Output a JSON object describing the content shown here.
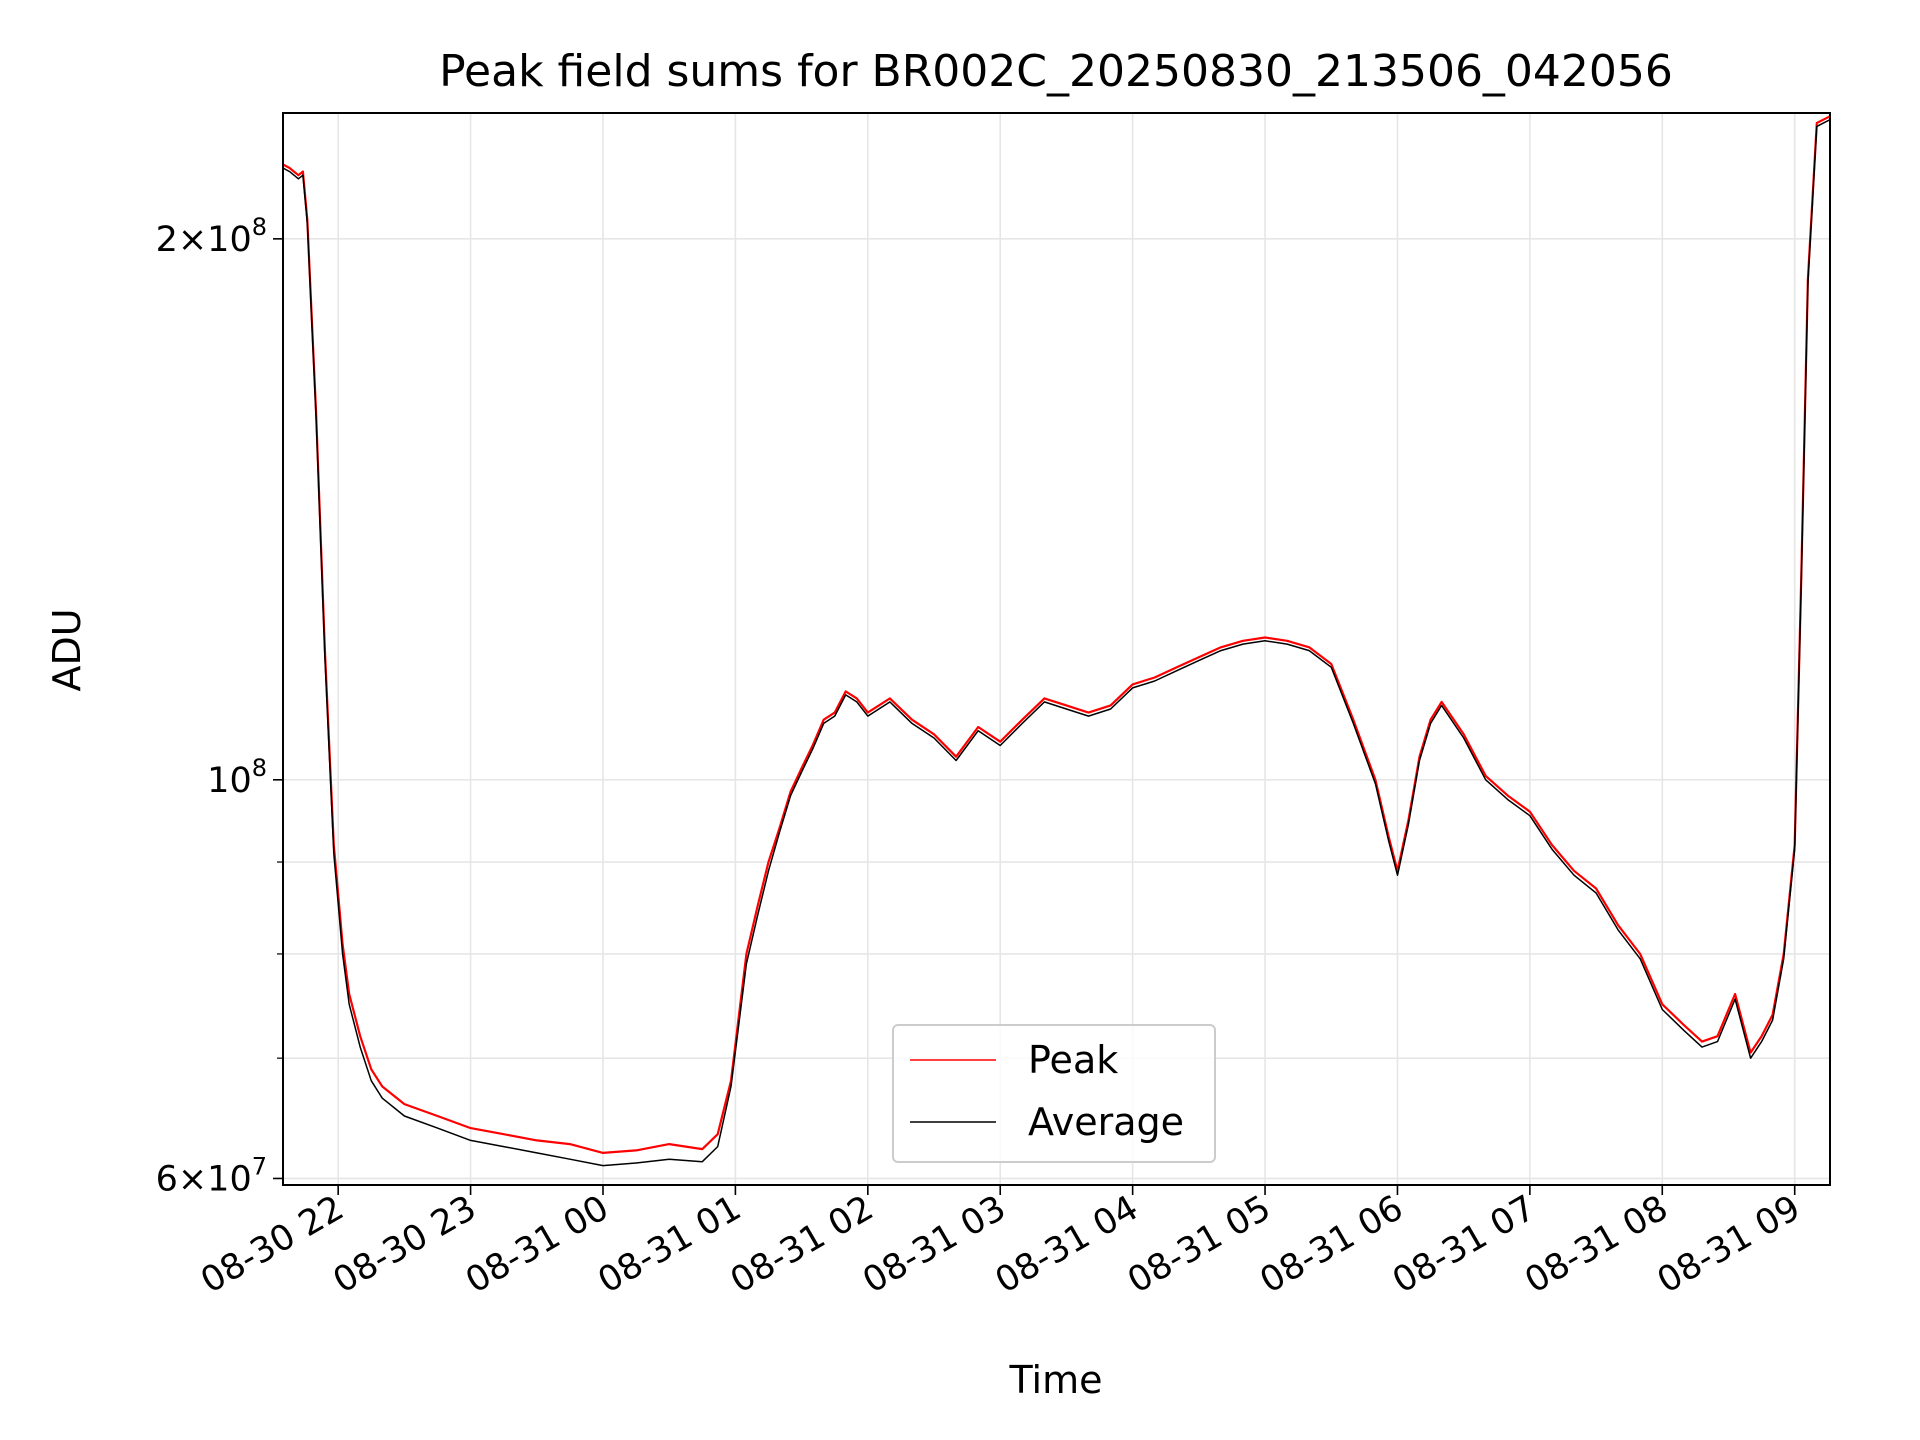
{
  "chart_data": {
    "type": "line",
    "title": "Peak field sums for BR002C_20250830_213506_042056",
    "xlabel": "Time",
    "ylabel": "ADU",
    "y_scale": "log",
    "xlim": [
      "2025-08-30 21:35",
      "2025-08-31 09:16"
    ],
    "ylim": [
      59500000,
      235000000
    ],
    "x_ticks": [
      "08-30 22",
      "08-30 23",
      "08-31 00",
      "08-31 01",
      "08-31 02",
      "08-31 03",
      "08-31 04",
      "08-31 05",
      "08-31 06",
      "08-31 07",
      "08-31 08",
      "08-31 09"
    ],
    "y_major_ticks": [
      {
        "value": 60000000,
        "base": "6",
        "exp": "7"
      },
      {
        "value": 100000000,
        "base": "",
        "exp": "8"
      },
      {
        "value": 200000000,
        "base": "2",
        "exp": "8"
      }
    ],
    "y_minor_ticks": [
      70000000,
      80000000,
      90000000
    ],
    "grid": true,
    "legend_position": "lower-center",
    "series": [
      {
        "name": "Peak",
        "color": "#ff0000",
        "x": [
          "2025-08-30 21:35",
          "2025-08-30 21:38",
          "2025-08-30 21:42",
          "2025-08-30 21:44",
          "2025-08-30 21:46",
          "2025-08-30 21:50",
          "2025-08-30 21:54",
          "2025-08-30 21:58",
          "2025-08-30 22:02",
          "2025-08-30 22:05",
          "2025-08-30 22:10",
          "2025-08-30 22:15",
          "2025-08-30 22:20",
          "2025-08-30 22:30",
          "2025-08-30 22:45",
          "2025-08-30 23:00",
          "2025-08-30 23:15",
          "2025-08-30 23:30",
          "2025-08-30 23:45",
          "2025-08-31 00:00",
          "2025-08-31 00:15",
          "2025-08-31 00:30",
          "2025-08-31 00:45",
          "2025-08-31 00:52",
          "2025-08-31 00:58",
          "2025-08-31 01:05",
          "2025-08-31 01:10",
          "2025-08-31 01:15",
          "2025-08-31 01:20",
          "2025-08-31 01:25",
          "2025-08-31 01:30",
          "2025-08-31 01:35",
          "2025-08-31 01:40",
          "2025-08-31 01:45",
          "2025-08-31 01:50",
          "2025-08-31 01:55",
          "2025-08-31 02:00",
          "2025-08-31 02:10",
          "2025-08-31 02:20",
          "2025-08-31 02:30",
          "2025-08-31 02:40",
          "2025-08-31 02:50",
          "2025-08-31 03:00",
          "2025-08-31 03:10",
          "2025-08-31 03:20",
          "2025-08-31 03:30",
          "2025-08-31 03:40",
          "2025-08-31 03:50",
          "2025-08-31 04:00",
          "2025-08-31 04:10",
          "2025-08-31 04:20",
          "2025-08-31 04:30",
          "2025-08-31 04:40",
          "2025-08-31 04:50",
          "2025-08-31 05:00",
          "2025-08-31 05:10",
          "2025-08-31 05:20",
          "2025-08-31 05:30",
          "2025-08-31 05:40",
          "2025-08-31 05:50",
          "2025-08-31 05:56",
          "2025-08-31 06:00",
          "2025-08-31 06:05",
          "2025-08-31 06:10",
          "2025-08-31 06:15",
          "2025-08-31 06:20",
          "2025-08-31 06:30",
          "2025-08-31 06:40",
          "2025-08-31 06:50",
          "2025-08-31 07:00",
          "2025-08-31 07:10",
          "2025-08-31 07:20",
          "2025-08-31 07:30",
          "2025-08-31 07:40",
          "2025-08-31 07:50",
          "2025-08-31 08:00",
          "2025-08-31 08:10",
          "2025-08-31 08:18",
          "2025-08-31 08:25",
          "2025-08-31 08:33",
          "2025-08-31 08:40",
          "2025-08-31 08:45",
          "2025-08-31 08:50",
          "2025-08-31 08:55",
          "2025-08-31 09:00",
          "2025-08-31 09:03",
          "2025-08-31 09:06",
          "2025-08-31 09:10",
          "2025-08-31 09:16"
        ],
        "y": [
          220000000,
          219000000,
          217000000,
          218000000,
          205000000,
          160000000,
          118000000,
          92000000,
          81000000,
          76000000,
          72000000,
          69000000,
          67500000,
          66000000,
          65000000,
          64000000,
          63500000,
          63000000,
          62700000,
          62000000,
          62200000,
          62700000,
          62300000,
          63500000,
          68000000,
          80000000,
          85000000,
          90000000,
          94000000,
          98500000,
          101500000,
          104500000,
          108000000,
          109000000,
          112000000,
          111000000,
          109000000,
          111000000,
          108000000,
          106000000,
          103000000,
          107000000,
          105000000,
          108000000,
          111000000,
          110000000,
          109000000,
          110000000,
          113000000,
          114000000,
          115500000,
          117000000,
          118500000,
          119500000,
          120000000,
          119500000,
          118500000,
          116000000,
          108000000,
          100000000,
          93000000,
          89000000,
          95000000,
          103000000,
          108000000,
          110500000,
          106000000,
          100500000,
          98000000,
          96000000,
          92000000,
          89000000,
          87000000,
          83000000,
          80000000,
          75000000,
          73000000,
          71500000,
          72000000,
          76000000,
          70500000,
          72000000,
          74000000,
          80000000,
          92000000,
          130000000,
          190000000,
          232000000,
          234000000
        ]
      },
      {
        "name": "Average",
        "color": "#000000",
        "x": [
          "2025-08-30 21:35",
          "2025-08-30 21:38",
          "2025-08-30 21:42",
          "2025-08-30 21:44",
          "2025-08-30 21:46",
          "2025-08-30 21:50",
          "2025-08-30 21:54",
          "2025-08-30 21:58",
          "2025-08-30 22:02",
          "2025-08-30 22:05",
          "2025-08-30 22:10",
          "2025-08-30 22:15",
          "2025-08-30 22:20",
          "2025-08-30 22:30",
          "2025-08-30 22:45",
          "2025-08-30 23:00",
          "2025-08-30 23:15",
          "2025-08-30 23:30",
          "2025-08-30 23:45",
          "2025-08-31 00:00",
          "2025-08-31 00:15",
          "2025-08-31 00:30",
          "2025-08-31 00:45",
          "2025-08-31 00:52",
          "2025-08-31 00:58",
          "2025-08-31 01:05",
          "2025-08-31 01:10",
          "2025-08-31 01:15",
          "2025-08-31 01:20",
          "2025-08-31 01:25",
          "2025-08-31 01:30",
          "2025-08-31 01:35",
          "2025-08-31 01:40",
          "2025-08-31 01:45",
          "2025-08-31 01:50",
          "2025-08-31 01:55",
          "2025-08-31 02:00",
          "2025-08-31 02:10",
          "2025-08-31 02:20",
          "2025-08-31 02:30",
          "2025-08-31 02:40",
          "2025-08-31 02:50",
          "2025-08-31 03:00",
          "2025-08-31 03:10",
          "2025-08-31 03:20",
          "2025-08-31 03:30",
          "2025-08-31 03:40",
          "2025-08-31 03:50",
          "2025-08-31 04:00",
          "2025-08-31 04:10",
          "2025-08-31 04:20",
          "2025-08-31 04:30",
          "2025-08-31 04:40",
          "2025-08-31 04:50",
          "2025-08-31 05:00",
          "2025-08-31 05:10",
          "2025-08-31 05:20",
          "2025-08-31 05:30",
          "2025-08-31 05:40",
          "2025-08-31 05:50",
          "2025-08-31 05:56",
          "2025-08-31 06:00",
          "2025-08-31 06:05",
          "2025-08-31 06:10",
          "2025-08-31 06:15",
          "2025-08-31 06:20",
          "2025-08-31 06:30",
          "2025-08-31 06:40",
          "2025-08-31 06:50",
          "2025-08-31 07:00",
          "2025-08-31 07:10",
          "2025-08-31 07:20",
          "2025-08-31 07:30",
          "2025-08-31 07:40",
          "2025-08-31 07:50",
          "2025-08-31 08:00",
          "2025-08-31 08:10",
          "2025-08-31 08:18",
          "2025-08-31 08:25",
          "2025-08-31 08:33",
          "2025-08-31 08:40",
          "2025-08-31 08:45",
          "2025-08-31 08:50",
          "2025-08-31 08:55",
          "2025-08-31 09:00",
          "2025-08-31 09:03",
          "2025-08-31 09:06",
          "2025-08-31 09:10",
          "2025-08-31 09:16"
        ],
        "y": [
          219000000,
          218000000,
          216000000,
          217000000,
          204000000,
          159000000,
          117000000,
          91000000,
          80000000,
          75000000,
          71000000,
          68000000,
          66500000,
          65000000,
          64000000,
          63000000,
          62500000,
          62000000,
          61500000,
          61000000,
          61200000,
          61500000,
          61300000,
          62500000,
          67500000,
          79000000,
          84000000,
          89000000,
          93500000,
          98000000,
          101000000,
          104000000,
          107500000,
          108500000,
          111500000,
          110500000,
          108500000,
          110500000,
          107500000,
          105500000,
          102500000,
          106500000,
          104500000,
          107500000,
          110500000,
          109500000,
          108500000,
          109500000,
          112500000,
          113500000,
          115000000,
          116500000,
          118000000,
          119000000,
          119500000,
          119000000,
          118000000,
          115500000,
          107500000,
          99500000,
          92500000,
          88500000,
          94500000,
          102500000,
          107500000,
          110000000,
          105500000,
          100000000,
          97500000,
          95500000,
          91500000,
          88500000,
          86500000,
          82500000,
          79500000,
          74500000,
          72500000,
          71000000,
          71500000,
          75500000,
          70000000,
          71500000,
          73500000,
          79500000,
          91500000,
          129000000,
          189000000,
          231000000,
          233000000
        ]
      }
    ]
  }
}
